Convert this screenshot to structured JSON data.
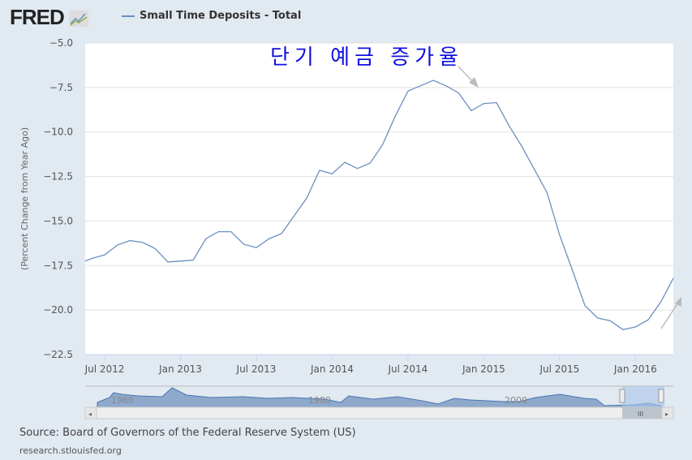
{
  "header": {
    "logo": "FRED",
    "legend_label": "Small Time Deposits - Total"
  },
  "annotation": "단기 예금 증가율",
  "footer": {
    "source": "Source: Board of Governors of the Federal Reserve System (US)",
    "site": "research.stlouisfed.org"
  },
  "navigator": {
    "labels": [
      "1960",
      "1980",
      "2000"
    ]
  },
  "colors": {
    "line": "#6b8fc0",
    "annotation": "#1010e0",
    "background": "#e1e9f1"
  },
  "chart_data": {
    "type": "line",
    "title": "",
    "ylabel": "(Percent Change from Year Ago)",
    "ylim": [
      -22.5,
      -5.0
    ],
    "yticks": [
      "-5.0",
      "-7.5",
      "-10.0",
      "-12.5",
      "-15.0",
      "-17.5",
      "-20.0",
      "-22.5"
    ],
    "xticks": [
      "Jul 2012",
      "Jan 2013",
      "Jul 2013",
      "Jan 2014",
      "Jul 2014",
      "Jan 2015",
      "Jul 2015",
      "Jan 2016"
    ],
    "grid": true,
    "series": [
      {
        "name": "Small Time Deposits - Total",
        "x": [
          "2012-05",
          "2012-06",
          "2012-07",
          "2012-08",
          "2012-09",
          "2012-10",
          "2012-11",
          "2012-12",
          "2013-01",
          "2013-02",
          "2013-03",
          "2013-04",
          "2013-05",
          "2013-06",
          "2013-07",
          "2013-08",
          "2013-09",
          "2013-10",
          "2013-11",
          "2013-12",
          "2014-01",
          "2014-02",
          "2014-03",
          "2014-04",
          "2014-05",
          "2014-06",
          "2014-07",
          "2014-08",
          "2014-09",
          "2014-10",
          "2014-11",
          "2014-12",
          "2015-01",
          "2015-02",
          "2015-03",
          "2015-04",
          "2015-05",
          "2015-06",
          "2015-07",
          "2015-08",
          "2015-09",
          "2015-10",
          "2015-11",
          "2015-12",
          "2016-01",
          "2016-02",
          "2016-03",
          "2016-04"
        ],
        "values": [
          -17.25,
          -17.1,
          -16.9,
          -16.35,
          -16.1,
          -16.2,
          -16.55,
          -17.3,
          -17.25,
          -17.2,
          -16.0,
          -15.6,
          -15.6,
          -16.3,
          -16.5,
          -16.0,
          -15.7,
          -14.7,
          -13.7,
          -12.15,
          -12.35,
          -11.7,
          -12.05,
          -11.75,
          -10.7,
          -9.1,
          -7.7,
          -7.4,
          -7.1,
          -7.4,
          -7.8,
          -8.8,
          -8.4,
          -8.35,
          -9.65,
          -10.8,
          -12.1,
          -13.4,
          -15.8,
          -17.75,
          -19.75,
          -20.45,
          -20.6,
          -21.1,
          -20.95,
          -20.55,
          -19.55,
          -18.2
        ]
      }
    ]
  }
}
